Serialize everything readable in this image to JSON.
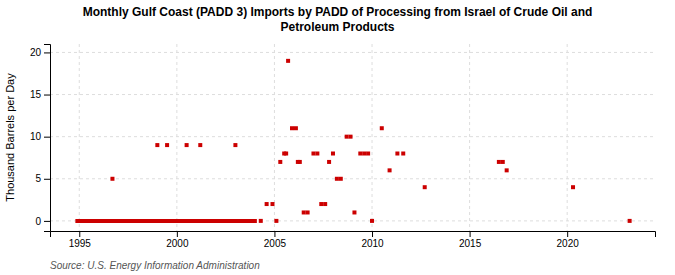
{
  "chart_data": {
    "type": "scatter",
    "title": "Monthly Gulf Coast (PADD 3) Imports by PADD of Processing from Israel of Crude Oil and\nPetroleum Products",
    "ylabel": "Thousand Barrels per Day",
    "annotation": "Source: U.S. Energy Information Administration",
    "xlim": [
      1993.5,
      2024.5
    ],
    "ylim": [
      -1.2,
      21
    ],
    "xticks": [
      1995,
      2000,
      2005,
      2010,
      2015,
      2020
    ],
    "yticks": [
      0,
      5,
      10,
      15,
      20
    ],
    "grid": true,
    "series": [
      {
        "type": "line",
        "color": "#cc0000",
        "x": [
          1994.8,
          2004.1
        ],
        "values": [
          0,
          0
        ]
      },
      {
        "type": "scatter",
        "color": "#cc0000",
        "marker": "square",
        "x": [
          1996.7,
          1999.0,
          1999.5,
          2000.5,
          2001.2,
          2003.0,
          2004.3,
          2004.6,
          2004.9,
          2005.1,
          2005.3,
          2005.5,
          2005.6,
          2005.7,
          2005.9,
          2006.1,
          2006.2,
          2006.3,
          2006.5,
          2006.7,
          2007.0,
          2007.2,
          2007.4,
          2007.6,
          2007.8,
          2008.0,
          2008.2,
          2008.4,
          2008.7,
          2008.9,
          2009.1,
          2009.4,
          2009.6,
          2009.8,
          2010.0,
          2010.5,
          2010.9,
          2011.3,
          2011.6,
          2012.7,
          2016.5,
          2016.7,
          2016.9,
          2020.3,
          2023.2
        ],
        "values": [
          5,
          9,
          9,
          9,
          9,
          9,
          0,
          2,
          2,
          0,
          7,
          8,
          8,
          19,
          11,
          11,
          7,
          7,
          1,
          1,
          8,
          8,
          2,
          2,
          7,
          8,
          5,
          5,
          10,
          10,
          1,
          8,
          8,
          8,
          0,
          11,
          6,
          8,
          8,
          4,
          7,
          7,
          6,
          4,
          0
        ]
      }
    ]
  }
}
